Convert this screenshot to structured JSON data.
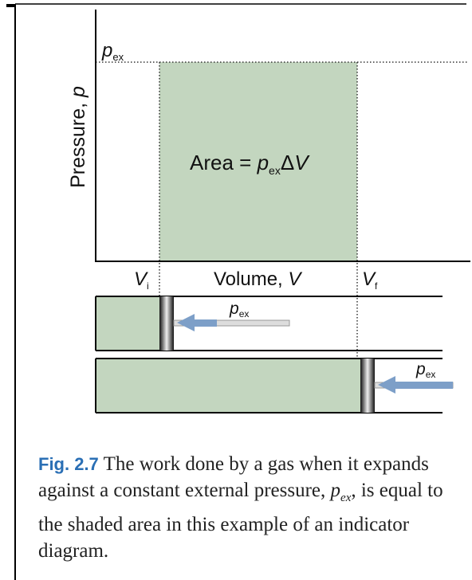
{
  "graph": {
    "pressure_label": {
      "text": "Pressure, ",
      "symbol": "p"
    },
    "pex_axis_label": {
      "symbol": "p",
      "sub": "ex"
    },
    "area_label": {
      "text": "Area = ",
      "symbol": "p",
      "sub": "ex",
      "delta": "Δ",
      "volume": "V"
    },
    "vi_label": {
      "symbol": "V",
      "sub": "i"
    },
    "volume_label": {
      "text": "Volume, ",
      "symbol": "V"
    },
    "vf_label": {
      "symbol": "V",
      "sub": "f"
    }
  },
  "pistons": [
    {
      "symbol": "p",
      "sub": "ex"
    },
    {
      "symbol": "p",
      "sub": "ex"
    }
  ],
  "caption": {
    "label": "Fig. 2.7",
    "text": "The work done by a gas when it expands against a constant external pressure, ",
    "symbol": "p",
    "sub": "ex",
    "text_end": ", is equal to the shaded area in this example of an indicator diagram."
  }
}
